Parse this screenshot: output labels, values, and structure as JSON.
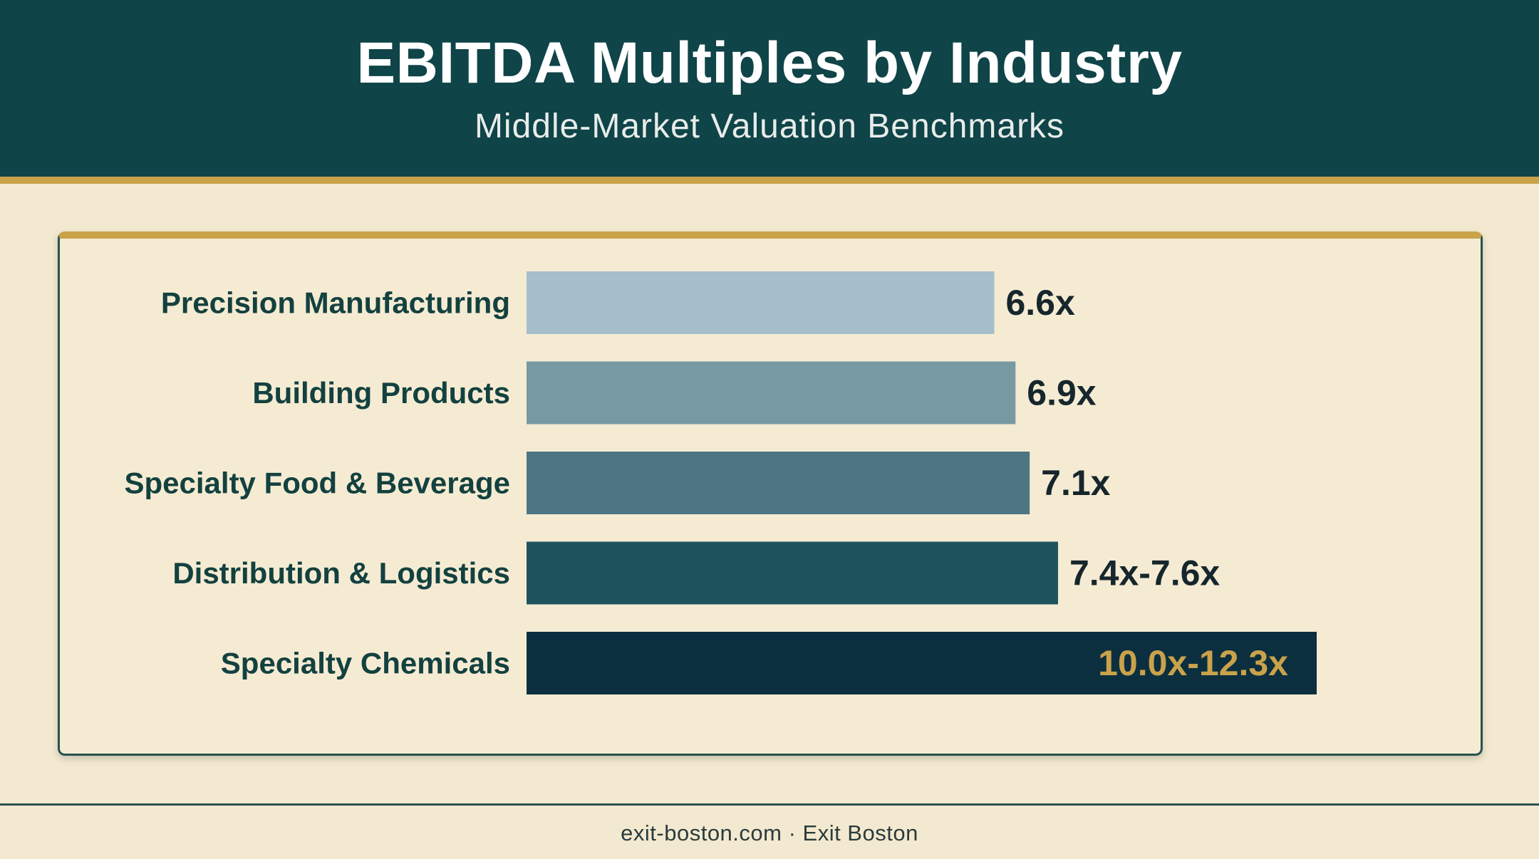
{
  "header": {
    "title": "EBITDA Multiples by Industry",
    "subtitle": "Middle-Market Valuation Benchmarks"
  },
  "footer": {
    "text": "exit-boston.com · Exit Boston"
  },
  "colors": {
    "header_bg": "#0f4448",
    "accent_gold": "#c9a24a",
    "background": "#f3e9d0",
    "label_text": "#13413f",
    "value_text": "#16262c"
  },
  "chart_data": {
    "type": "bar",
    "orientation": "horizontal",
    "title": "",
    "xlabel": "",
    "ylabel": "",
    "categories": [
      "Precision Manufacturing",
      "Building Products",
      "Specialty Food & Beverage",
      "Distribution & Logistics",
      "Specialty Chemicals"
    ],
    "values": [
      6.6,
      6.9,
      7.1,
      7.5,
      11.15
    ],
    "value_labels": [
      "6.6x",
      "6.9x",
      "7.1x",
      "7.4x-7.6x",
      "10.0x-12.3x"
    ],
    "bar_colors": [
      "#a5bfcb",
      "#7799a2",
      "#4e7583",
      "#1e535d",
      "#0c2f40"
    ],
    "grid": false,
    "legend": "none"
  }
}
